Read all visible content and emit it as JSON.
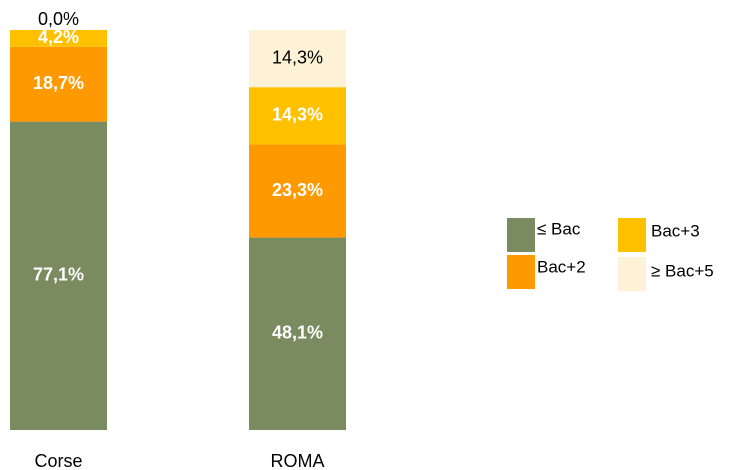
{
  "chart_data": {
    "type": "stacked_bar",
    "categories": [
      "Corse",
      "ROMA"
    ],
    "series": [
      {
        "name": "≤ Bac",
        "color": "#7a8b5f",
        "values": [
          77.1,
          48.1
        ],
        "value_labels": [
          "77,1%",
          "48,1%"
        ]
      },
      {
        "name": "Bac+2",
        "color": "#ff9900",
        "values": [
          18.7,
          23.3
        ],
        "value_labels": [
          "18,7%",
          "23,3%"
        ]
      },
      {
        "name": "Bac+3",
        "color": "#ffc000",
        "values": [
          4.2,
          14.3
        ],
        "value_labels": [
          "4,2%",
          "14,3%"
        ]
      },
      {
        "name": "≥ Bac+5",
        "color": "#fdf2d5",
        "values": [
          0.0,
          14.3
        ],
        "value_labels": [
          "0,0%",
          "14,3%"
        ]
      }
    ],
    "ylim": [
      0,
      100
    ]
  }
}
